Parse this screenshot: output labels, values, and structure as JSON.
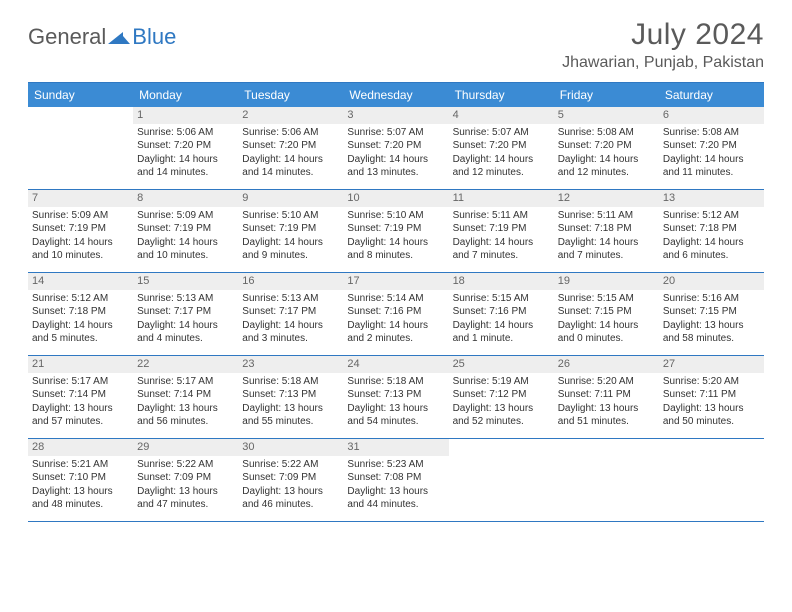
{
  "brand": {
    "part1": "General",
    "part2": "Blue",
    "logo_color": "#2f78c2"
  },
  "title": "July 2024",
  "location": "Jhawarian, Punjab, Pakistan",
  "colors": {
    "header_bg": "#3b8bd4",
    "border": "#2f78c2",
    "daynum_bg": "#eeeeee",
    "text": "#333333",
    "muted": "#5a5a5a"
  },
  "days_of_week": [
    "Sunday",
    "Monday",
    "Tuesday",
    "Wednesday",
    "Thursday",
    "Friday",
    "Saturday"
  ],
  "weeks": [
    [
      {
        "n": "",
        "sr": "",
        "ss": "",
        "dl": ""
      },
      {
        "n": "1",
        "sr": "5:06 AM",
        "ss": "7:20 PM",
        "dl": "14 hours and 14 minutes."
      },
      {
        "n": "2",
        "sr": "5:06 AM",
        "ss": "7:20 PM",
        "dl": "14 hours and 14 minutes."
      },
      {
        "n": "3",
        "sr": "5:07 AM",
        "ss": "7:20 PM",
        "dl": "14 hours and 13 minutes."
      },
      {
        "n": "4",
        "sr": "5:07 AM",
        "ss": "7:20 PM",
        "dl": "14 hours and 12 minutes."
      },
      {
        "n": "5",
        "sr": "5:08 AM",
        "ss": "7:20 PM",
        "dl": "14 hours and 12 minutes."
      },
      {
        "n": "6",
        "sr": "5:08 AM",
        "ss": "7:20 PM",
        "dl": "14 hours and 11 minutes."
      }
    ],
    [
      {
        "n": "7",
        "sr": "5:09 AM",
        "ss": "7:19 PM",
        "dl": "14 hours and 10 minutes."
      },
      {
        "n": "8",
        "sr": "5:09 AM",
        "ss": "7:19 PM",
        "dl": "14 hours and 10 minutes."
      },
      {
        "n": "9",
        "sr": "5:10 AM",
        "ss": "7:19 PM",
        "dl": "14 hours and 9 minutes."
      },
      {
        "n": "10",
        "sr": "5:10 AM",
        "ss": "7:19 PM",
        "dl": "14 hours and 8 minutes."
      },
      {
        "n": "11",
        "sr": "5:11 AM",
        "ss": "7:19 PM",
        "dl": "14 hours and 7 minutes."
      },
      {
        "n": "12",
        "sr": "5:11 AM",
        "ss": "7:18 PM",
        "dl": "14 hours and 7 minutes."
      },
      {
        "n": "13",
        "sr": "5:12 AM",
        "ss": "7:18 PM",
        "dl": "14 hours and 6 minutes."
      }
    ],
    [
      {
        "n": "14",
        "sr": "5:12 AM",
        "ss": "7:18 PM",
        "dl": "14 hours and 5 minutes."
      },
      {
        "n": "15",
        "sr": "5:13 AM",
        "ss": "7:17 PM",
        "dl": "14 hours and 4 minutes."
      },
      {
        "n": "16",
        "sr": "5:13 AM",
        "ss": "7:17 PM",
        "dl": "14 hours and 3 minutes."
      },
      {
        "n": "17",
        "sr": "5:14 AM",
        "ss": "7:16 PM",
        "dl": "14 hours and 2 minutes."
      },
      {
        "n": "18",
        "sr": "5:15 AM",
        "ss": "7:16 PM",
        "dl": "14 hours and 1 minute."
      },
      {
        "n": "19",
        "sr": "5:15 AM",
        "ss": "7:15 PM",
        "dl": "14 hours and 0 minutes."
      },
      {
        "n": "20",
        "sr": "5:16 AM",
        "ss": "7:15 PM",
        "dl": "13 hours and 58 minutes."
      }
    ],
    [
      {
        "n": "21",
        "sr": "5:17 AM",
        "ss": "7:14 PM",
        "dl": "13 hours and 57 minutes."
      },
      {
        "n": "22",
        "sr": "5:17 AM",
        "ss": "7:14 PM",
        "dl": "13 hours and 56 minutes."
      },
      {
        "n": "23",
        "sr": "5:18 AM",
        "ss": "7:13 PM",
        "dl": "13 hours and 55 minutes."
      },
      {
        "n": "24",
        "sr": "5:18 AM",
        "ss": "7:13 PM",
        "dl": "13 hours and 54 minutes."
      },
      {
        "n": "25",
        "sr": "5:19 AM",
        "ss": "7:12 PM",
        "dl": "13 hours and 52 minutes."
      },
      {
        "n": "26",
        "sr": "5:20 AM",
        "ss": "7:11 PM",
        "dl": "13 hours and 51 minutes."
      },
      {
        "n": "27",
        "sr": "5:20 AM",
        "ss": "7:11 PM",
        "dl": "13 hours and 50 minutes."
      }
    ],
    [
      {
        "n": "28",
        "sr": "5:21 AM",
        "ss": "7:10 PM",
        "dl": "13 hours and 48 minutes."
      },
      {
        "n": "29",
        "sr": "5:22 AM",
        "ss": "7:09 PM",
        "dl": "13 hours and 47 minutes."
      },
      {
        "n": "30",
        "sr": "5:22 AM",
        "ss": "7:09 PM",
        "dl": "13 hours and 46 minutes."
      },
      {
        "n": "31",
        "sr": "5:23 AM",
        "ss": "7:08 PM",
        "dl": "13 hours and 44 minutes."
      },
      {
        "n": "",
        "sr": "",
        "ss": "",
        "dl": ""
      },
      {
        "n": "",
        "sr": "",
        "ss": "",
        "dl": ""
      },
      {
        "n": "",
        "sr": "",
        "ss": "",
        "dl": ""
      }
    ]
  ],
  "labels": {
    "sunrise": "Sunrise:",
    "sunset": "Sunset:",
    "daylight": "Daylight:"
  }
}
